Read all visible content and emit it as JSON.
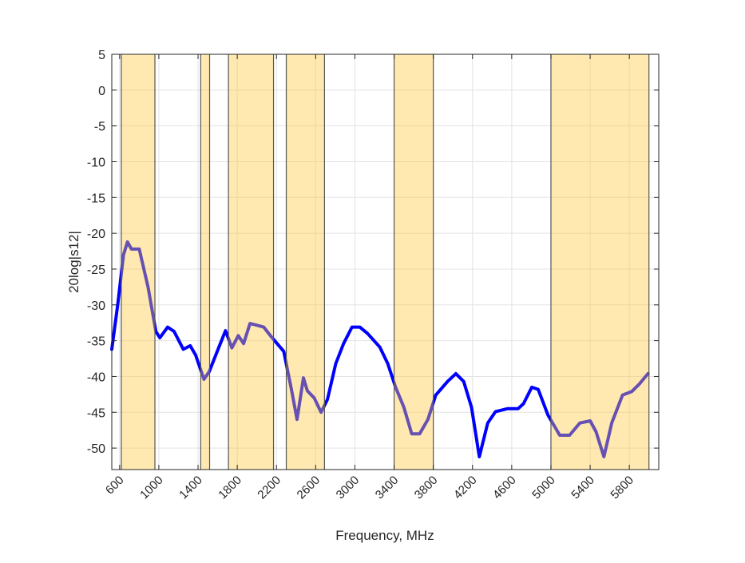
{
  "chart_data": {
    "type": "line",
    "title": "",
    "xlabel": "Frequency, MHz",
    "ylabel": "20log|s12|",
    "xlim": [
      520,
      6100
    ],
    "ylim": [
      -53,
      5
    ],
    "grid": true,
    "xticks": [
      600,
      1000,
      1400,
      1800,
      2200,
      2600,
      3000,
      3400,
      3800,
      4200,
      4600,
      5000,
      5400,
      5800
    ],
    "yticks": [
      5,
      0,
      -5,
      -10,
      -15,
      -20,
      -25,
      -30,
      -35,
      -40,
      -45,
      -50
    ],
    "line_color": "#0000ff",
    "band_color": "#ffc83c",
    "bands": [
      [
        617,
        960
      ],
      [
        1427,
        1518
      ],
      [
        1710,
        2170
      ],
      [
        2300,
        2690
      ],
      [
        3400,
        3800
      ],
      [
        5000,
        6000
      ]
    ],
    "series": [
      {
        "x": [
          520,
          580,
          640,
          680,
          720,
          800,
          890,
          970,
          1010,
          1090,
          1155,
          1250,
          1320,
          1375,
          1460,
          1515,
          1595,
          1680,
          1745,
          1810,
          1865,
          1930,
          1990,
          2070,
          2150,
          2275,
          2355,
          2410,
          2475,
          2515,
          2585,
          2655,
          2720,
          2805,
          2885,
          2970,
          3050,
          3130,
          3255,
          3335,
          3415,
          3500,
          3580,
          3660,
          3745,
          3825,
          3945,
          4030,
          4110,
          4190,
          4270,
          4355,
          4435,
          4555,
          4665,
          4720,
          4805,
          4870,
          4970,
          5090,
          5190,
          5295,
          5400,
          5460,
          5540,
          5620,
          5730,
          5825,
          5905,
          5990
        ],
        "y": [
          -36.2,
          -30,
          -23,
          -21.2,
          -22.2,
          -22.2,
          -27.5,
          -33.7,
          -34.6,
          -33.1,
          -33.7,
          -36.2,
          -35.7,
          -37,
          -40.4,
          -39.3,
          -36.5,
          -33.6,
          -36,
          -34.3,
          -35.4,
          -32.6,
          -32.8,
          -33.1,
          -34.5,
          -36.5,
          -42,
          -46,
          -40.2,
          -42,
          -43,
          -45,
          -43.2,
          -38.2,
          -35.4,
          -33.1,
          -33.1,
          -34,
          -35.9,
          -38.2,
          -41.5,
          -44.3,
          -48,
          -48,
          -46,
          -42.6,
          -40.7,
          -39.6,
          -40.7,
          -44.3,
          -51.2,
          -46.5,
          -44.9,
          -44.5,
          -44.5,
          -43.8,
          -41.5,
          -41.8,
          -45.4,
          -48.2,
          -48.2,
          -46.5,
          -46.2,
          -47.7,
          -51.2,
          -46.5,
          -42.6,
          -42.1,
          -41,
          -39.6
        ]
      }
    ]
  }
}
